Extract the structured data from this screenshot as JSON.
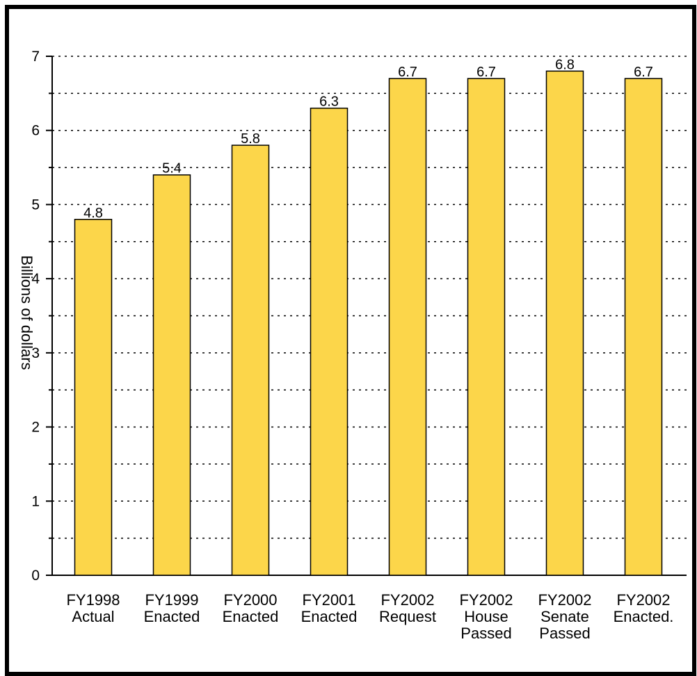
{
  "chart_data": {
    "type": "bar",
    "title": "",
    "xlabel": "",
    "ylabel": "Billions of dollars",
    "ylim": [
      0,
      7
    ],
    "yticks": [
      0,
      1,
      2,
      3,
      4,
      5,
      6,
      7
    ],
    "grid": "dotted horizontal, every 0.5",
    "categories": [
      [
        "FY1998",
        "Actual"
      ],
      [
        "FY1999",
        "Enacted"
      ],
      [
        "FY2000",
        "Enacted"
      ],
      [
        "FY2001",
        "Enacted"
      ],
      [
        "FY2002",
        "Request"
      ],
      [
        "FY2002",
        "House",
        "Passed"
      ],
      [
        "FY2002",
        "Senate",
        "Passed"
      ],
      [
        "FY2002",
        "Enacted."
      ]
    ],
    "values": [
      4.8,
      5.4,
      5.8,
      6.3,
      6.7,
      6.7,
      6.8,
      6.7
    ],
    "data_labels": [
      "4.8",
      "5.4",
      "5.8",
      "6.3",
      "6.7",
      "6.7",
      "6.8",
      "6.7"
    ],
    "colors": {
      "bar": "#FCD64A",
      "bar_stroke": "#000000",
      "grid": "#000000",
      "frame": "#000000"
    }
  }
}
